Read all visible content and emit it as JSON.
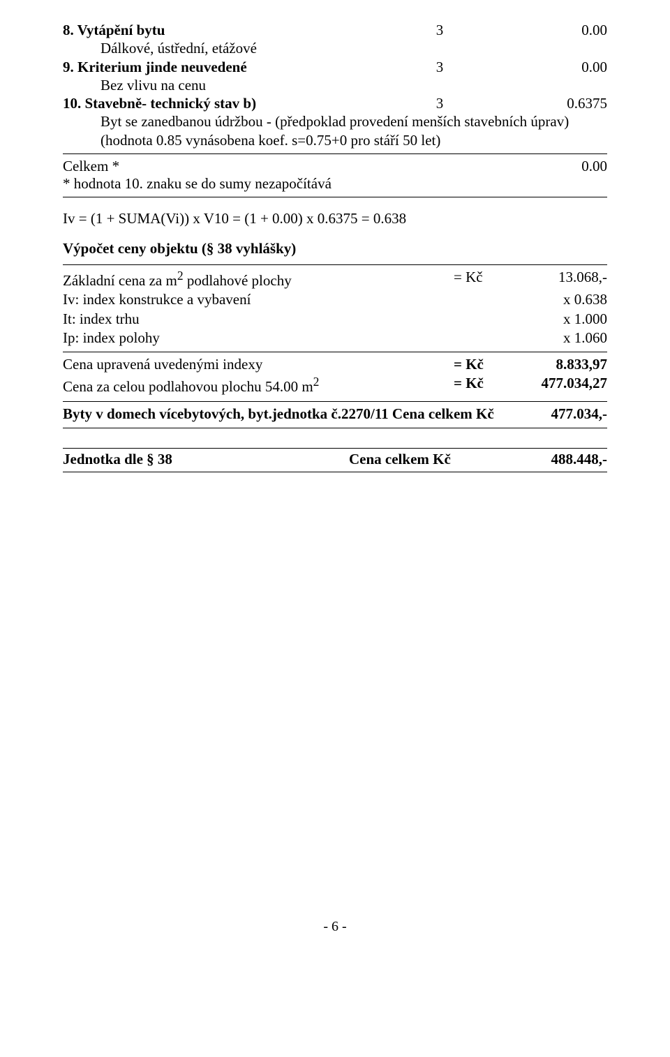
{
  "items": [
    {
      "label": "8. Vytápění bytu",
      "col2": "3",
      "col3": "0.00",
      "bold": true,
      "sub": "Dálkové, ústřední, etážové"
    },
    {
      "label": "9. Kriterium jinde neuvedené",
      "col2": "3",
      "col3": "0.00",
      "bold": true,
      "sub": "Bez vlivu na cenu"
    },
    {
      "label": "10. Stavebně- technický stav b)",
      "col2": "3",
      "col3": "0.6375",
      "bold": true,
      "sub": "Byt se zanedbanou údržbou - (předpoklad provedení menších stavebních úprav)\n(hodnota 0.85 vynásobena koef. s=0.75+0 pro stáří 50 let)"
    }
  ],
  "celkem_label": "Celkem *",
  "celkem_value": "0.00",
  "note": "* hodnota 10. znaku se do sumy nezapočítává",
  "iv_line": "Iv = (1 + SUMA(Vi)) x V10 = (1 + 0.00) x 0.6375 = 0.638",
  "calc_heading": "Výpočet ceny objektu (§ 38 vyhlášky)",
  "calc_rows": [
    {
      "l": "Základní cena za m2 podlahové plochy",
      "sup": true,
      "m": "= Kč",
      "r": "13.068,-"
    },
    {
      "l": "Iv: index konstrukce a vybavení",
      "m": "",
      "r": "x 0.638"
    },
    {
      "l": "It: index trhu",
      "m": "",
      "r": "x 1.000"
    },
    {
      "l": "Ip: index polohy",
      "m": "",
      "r": "x 1.060"
    }
  ],
  "sum_rows": [
    {
      "l": "Cena upravená uvedenými indexy",
      "m": "= Kč",
      "r": "8.833,97"
    },
    {
      "l": "Cena za celou podlahovou plochu 54.00 m2",
      "sup": true,
      "m": "= Kč",
      "r": "477.034,27"
    }
  ],
  "total1": {
    "l": "Byty v domech vícebytových, byt.jednotka č.2270/11 Cena celkem Kč",
    "r": "477.034,-"
  },
  "total2": {
    "l": "Jednotka dle § 38",
    "m": "Cena celkem Kč",
    "r": "488.448,-"
  },
  "footer": "- 6 -"
}
